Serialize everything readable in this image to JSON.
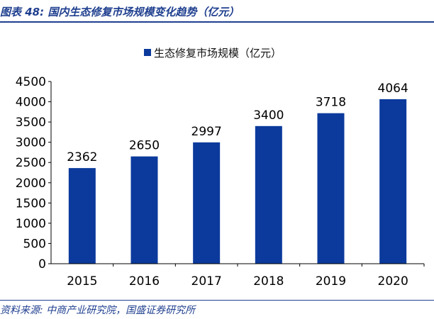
{
  "figure": {
    "title": "图表 48:  国内生态修复市场规模变化趋势（亿元）",
    "source": "资料来源:  中商产业研究院，国盛证券研究所"
  },
  "colors": {
    "bar": "#0b3a9c",
    "accent": "#1f3f8f",
    "axis": "#000000"
  },
  "chart_data": {
    "type": "bar",
    "categories": [
      "2015",
      "2016",
      "2017",
      "2018",
      "2019",
      "2020"
    ],
    "series": [
      {
        "name": "生态修复市场规模（亿元）",
        "values": [
          2362,
          2650,
          2997,
          3400,
          3718,
          4064
        ]
      }
    ],
    "ylim": [
      0,
      4500
    ],
    "yticks": [
      "0",
      "500",
      "1000",
      "1500",
      "2000",
      "2500",
      "3000",
      "3500",
      "4000",
      "4500"
    ],
    "data_labels": [
      "2362",
      "2650",
      "2997",
      "3400",
      "3718",
      "4064"
    ],
    "grid": false,
    "legend_position": "top-center"
  }
}
